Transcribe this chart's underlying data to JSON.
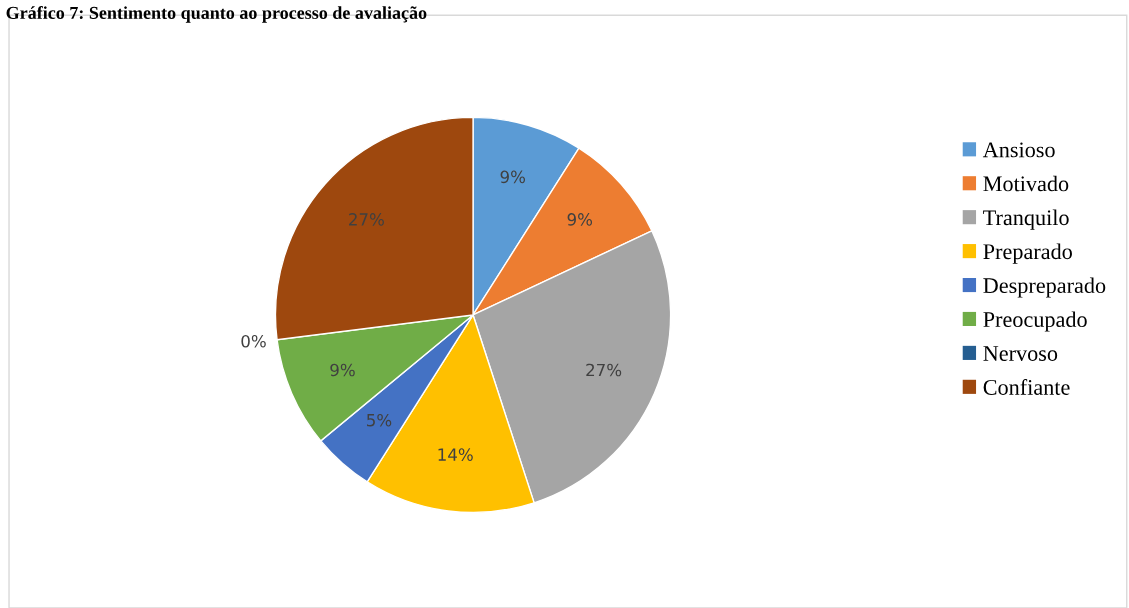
{
  "chart_data": {
    "type": "pie",
    "title": "Gráfico 7: Sentimento quanto ao processo de avaliação",
    "categories": [
      "Ansioso",
      "Motivado",
      "Tranquilo",
      "Preparado",
      "Despreparado",
      "Preocupado",
      "Nervoso",
      "Confiante"
    ],
    "values": [
      9,
      9,
      27,
      14,
      5,
      9,
      0,
      27
    ],
    "value_labels": [
      "9%",
      "9%",
      "27%",
      "14%",
      "5%",
      "9%",
      "0%",
      "27%"
    ],
    "colors": [
      "#5b9bd5",
      "#ed7d31",
      "#a5a5a5",
      "#ffc000",
      "#4472c4",
      "#70ad47",
      "#255e91",
      "#9e480e"
    ],
    "legend": "right"
  }
}
